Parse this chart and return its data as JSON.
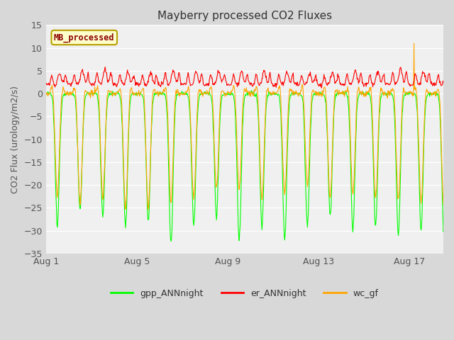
{
  "title": "Mayberry processed CO2 Fluxes",
  "ylabel": "CO2 Flux (urology/m2/s)",
  "xlim_days": [
    0,
    17.5
  ],
  "ylim": [
    -35,
    15
  ],
  "yticks": [
    -35,
    -30,
    -25,
    -20,
    -15,
    -10,
    -5,
    0,
    5,
    10,
    15
  ],
  "xtick_labels": [
    "Aug 1",
    "Aug 5",
    "Aug 9",
    "Aug 13",
    "Aug 17"
  ],
  "xtick_positions": [
    0,
    4,
    8,
    12,
    16
  ],
  "fig_bg_color": "#d8d8d8",
  "plot_bg_color": "#f0f0f0",
  "annotation_text": "MB_processed",
  "annotation_text_color": "#8b0000",
  "annotation_bg_color": "#ffffcc",
  "annotation_border_color": "#b8a000",
  "gpp_color": "#00ff00",
  "er_color": "#ff0000",
  "wc_color": "#ffa500",
  "line_width": 0.8,
  "legend_labels": [
    "gpp_ANNnight",
    "er_ANNnight",
    "wc_gf"
  ],
  "n_days": 18,
  "points_per_day": 48
}
